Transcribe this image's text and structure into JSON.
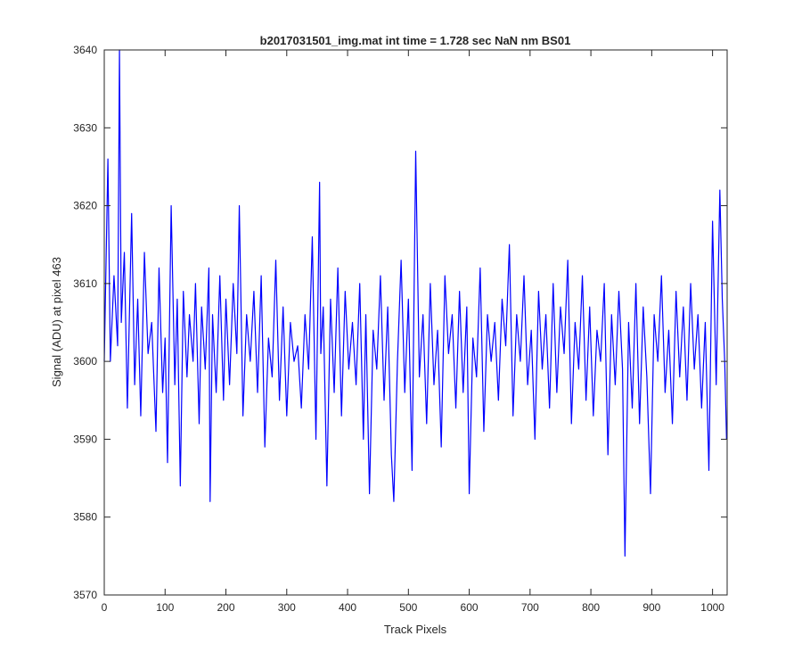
{
  "chart_data": {
    "type": "line",
    "title": "b2017031501_img.mat int time = 1.728 sec  NaN nm BS01",
    "xlabel": "Track Pixels",
    "ylabel": "Signal (ADU) at pixel 463",
    "xlim": [
      0,
      1024
    ],
    "ylim": [
      3570,
      3640
    ],
    "xticks": [
      0,
      100,
      200,
      300,
      400,
      500,
      600,
      700,
      800,
      900,
      1000
    ],
    "yticks": [
      3570,
      3580,
      3590,
      3600,
      3610,
      3620,
      3630,
      3640
    ],
    "grid": false,
    "legend": "none",
    "colors": {
      "line": "#0000ff",
      "axes": "#262626",
      "background": "#ffffff"
    },
    "series": [
      {
        "x": [
          0,
          6,
          10,
          16,
          22,
          25,
          28,
          33,
          38,
          45,
          50,
          55,
          60,
          66,
          72,
          78,
          85,
          90,
          96,
          100,
          104,
          110,
          116,
          120,
          125,
          130,
          136,
          140,
          146,
          150,
          156,
          160,
          166,
          172,
          174,
          178,
          184,
          190,
          196,
          200,
          206,
          212,
          218,
          222,
          228,
          234,
          240,
          246,
          252,
          258,
          264,
          270,
          276,
          282,
          288,
          294,
          300,
          306,
          312,
          318,
          324,
          330,
          336,
          342,
          348,
          354,
          356,
          360,
          366,
          372,
          378,
          384,
          390,
          396,
          402,
          408,
          414,
          420,
          426,
          430,
          436,
          442,
          448,
          454,
          460,
          466,
          472,
          476,
          482,
          488,
          494,
          500,
          506,
          512,
          518,
          524,
          530,
          536,
          542,
          548,
          554,
          560,
          566,
          572,
          578,
          584,
          590,
          596,
          600,
          606,
          612,
          618,
          624,
          630,
          636,
          642,
          648,
          654,
          660,
          666,
          672,
          678,
          684,
          690,
          696,
          702,
          708,
          714,
          720,
          726,
          732,
          738,
          744,
          750,
          756,
          762,
          768,
          774,
          780,
          786,
          792,
          798,
          804,
          810,
          816,
          822,
          828,
          834,
          840,
          846,
          852,
          856,
          862,
          868,
          874,
          880,
          886,
          892,
          898,
          904,
          910,
          916,
          922,
          928,
          934,
          940,
          946,
          952,
          958,
          964,
          970,
          976,
          982,
          988,
          994,
          1000,
          1006,
          1012,
          1016,
          1020,
          1023
        ],
        "values": [
          3600,
          3626,
          3600,
          3611,
          3602,
          3640,
          3605,
          3614,
          3594,
          3619,
          3597,
          3608,
          3593,
          3614,
          3601,
          3605,
          3591,
          3612,
          3596,
          3603,
          3587,
          3620,
          3597,
          3608,
          3584,
          3609,
          3598,
          3606,
          3600,
          3610,
          3592,
          3607,
          3599,
          3612,
          3582,
          3606,
          3596,
          3611,
          3595,
          3608,
          3597,
          3610,
          3601,
          3620,
          3593,
          3606,
          3600,
          3609,
          3596,
          3611,
          3589,
          3603,
          3598,
          3613,
          3595,
          3607,
          3593,
          3605,
          3600,
          3602,
          3594,
          3606,
          3599,
          3616,
          3590,
          3623,
          3601,
          3607,
          3584,
          3608,
          3596,
          3612,
          3593,
          3609,
          3599,
          3605,
          3597,
          3610,
          3590,
          3606,
          3583,
          3604,
          3599,
          3611,
          3595,
          3607,
          3588,
          3582,
          3600,
          3613,
          3596,
          3608,
          3586,
          3627,
          3598,
          3606,
          3592,
          3610,
          3597,
          3604,
          3589,
          3611,
          3601,
          3606,
          3594,
          3609,
          3596,
          3607,
          3583,
          3603,
          3598,
          3612,
          3591,
          3606,
          3600,
          3605,
          3595,
          3608,
          3602,
          3615,
          3593,
          3606,
          3600,
          3611,
          3597,
          3604,
          3590,
          3609,
          3599,
          3606,
          3594,
          3610,
          3596,
          3607,
          3601,
          3613,
          3592,
          3605,
          3599,
          3611,
          3595,
          3607,
          3593,
          3604,
          3600,
          3610,
          3588,
          3606,
          3597,
          3609,
          3599,
          3575,
          3605,
          3594,
          3610,
          3592,
          3607,
          3598,
          3583,
          3606,
          3600,
          3611,
          3596,
          3604,
          3592,
          3609,
          3598,
          3607,
          3595,
          3610,
          3599,
          3606,
          3594,
          3605,
          3586,
          3618,
          3597,
          3622,
          3608,
          3600,
          3590
        ]
      }
    ]
  }
}
